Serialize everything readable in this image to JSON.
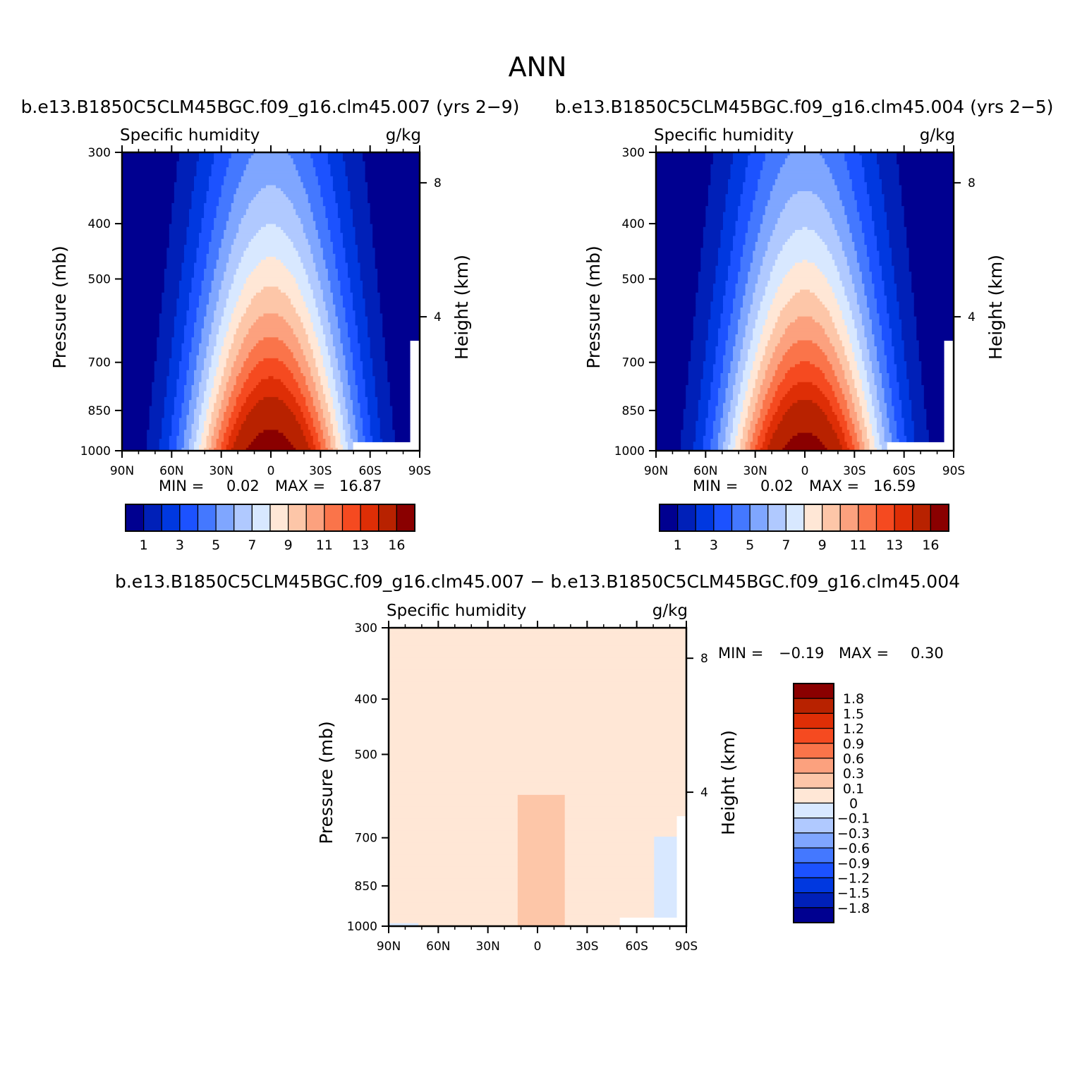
{
  "figure": {
    "title": "ANN",
    "panel1_caption": "b.e13.B1850C5CLM45BGC.f09_g16.clm45.007 (yrs 2−9)",
    "panel2_caption": "b.e13.B1850C5CLM45BGC.f09_g16.clm45.004 (yrs 2−5)",
    "diff_caption": "b.e13.B1850C5CLM45BGC.f09_g16.clm45.007 − b.e13.B1850C5CLM45BGC.f09_g16.clm45.004"
  },
  "chart_data": [
    {
      "type": "heatmap",
      "title": "Specific humidity",
      "units": "g/kg",
      "ylabel": "Pressure (mb)",
      "y2label": "Height (km)",
      "x_ticks": [
        "90N",
        "60N",
        "30N",
        "0",
        "30S",
        "60S",
        "90S"
      ],
      "y_ticks": [
        "300",
        "400",
        "500",
        "700",
        "850",
        "1000"
      ],
      "y2_ticks": [
        "8",
        "4"
      ],
      "ylim": [
        300,
        1000
      ],
      "xlim": [
        90,
        -90
      ],
      "min_label": "MIN =",
      "min_value": "0.02",
      "max_label": "MAX =",
      "max_value": "16.87",
      "min": 0.02,
      "max": 16.87,
      "levels": [
        "1",
        "2",
        "3",
        "4",
        "5",
        "6",
        "7",
        "8",
        "9",
        "10",
        "11",
        "12",
        "13",
        "14",
        "16"
      ],
      "colorbar_labels": [
        "1",
        "3",
        "5",
        "7",
        "9",
        "11",
        "13",
        "16"
      ],
      "colors": [
        "#000090",
        "#0020b8",
        "#0038e0",
        "#1c52ff",
        "#4478ff",
        "#7fa6ff",
        "#b0c9ff",
        "#d8e8ff",
        "#ffe7d6",
        "#fdc6a8",
        "#fca17e",
        "#fa744a",
        "#f54a20",
        "#de2e06",
        "#b82200",
        "#8a0000"
      ]
    },
    {
      "type": "heatmap",
      "title": "Specific humidity",
      "units": "g/kg",
      "ylabel": "Pressure (mb)",
      "y2label": "Height (km)",
      "x_ticks": [
        "90N",
        "60N",
        "30N",
        "0",
        "30S",
        "60S",
        "90S"
      ],
      "y_ticks": [
        "300",
        "400",
        "500",
        "700",
        "850",
        "1000"
      ],
      "y2_ticks": [
        "8",
        "4"
      ],
      "ylim": [
        300,
        1000
      ],
      "xlim": [
        90,
        -90
      ],
      "min_label": "MIN =",
      "min_value": "0.02",
      "max_label": "MAX =",
      "max_value": "16.59",
      "min": 0.02,
      "max": 16.59,
      "levels": [
        "1",
        "2",
        "3",
        "4",
        "5",
        "6",
        "7",
        "8",
        "9",
        "10",
        "11",
        "12",
        "13",
        "14",
        "16"
      ],
      "colorbar_labels": [
        "1",
        "3",
        "5",
        "7",
        "9",
        "11",
        "13",
        "16"
      ],
      "colors": [
        "#000090",
        "#0020b8",
        "#0038e0",
        "#1c52ff",
        "#4478ff",
        "#7fa6ff",
        "#b0c9ff",
        "#d8e8ff",
        "#ffe7d6",
        "#fdc6a8",
        "#fca17e",
        "#fa744a",
        "#f54a20",
        "#de2e06",
        "#b82200",
        "#8a0000"
      ]
    },
    {
      "type": "heatmap",
      "title": "Specific humidity",
      "units": "g/kg",
      "ylabel": "Pressure (mb)",
      "y2label": "Height (km)",
      "x_ticks": [
        "90N",
        "60N",
        "30N",
        "0",
        "30S",
        "60S",
        "90S"
      ],
      "y_ticks": [
        "300",
        "400",
        "500",
        "700",
        "850",
        "1000"
      ],
      "y2_ticks": [
        "8",
        "4"
      ],
      "ylim": [
        300,
        1000
      ],
      "xlim": [
        90,
        -90
      ],
      "min_label": "MIN =",
      "min_value": "−0.19",
      "max_label": "MAX =",
      "max_value": "0.30",
      "min": -0.19,
      "max": 0.3,
      "levels": [
        "1.8",
        "1.5",
        "1.2",
        "0.9",
        "0.6",
        "0.3",
        "0.1",
        "0",
        "−0.1",
        "−0.3",
        "−0.6",
        "−0.9",
        "−1.2",
        "−1.5",
        "−1.8"
      ],
      "colors": [
        "#8a0000",
        "#b82200",
        "#de2e06",
        "#f54a20",
        "#fa744a",
        "#fca17e",
        "#fdc6a8",
        "#ffe7d6",
        "#d8e8ff",
        "#b0c9ff",
        "#7fa6ff",
        "#4478ff",
        "#1c52ff",
        "#0038e0",
        "#0020b8",
        "#000090"
      ]
    }
  ]
}
